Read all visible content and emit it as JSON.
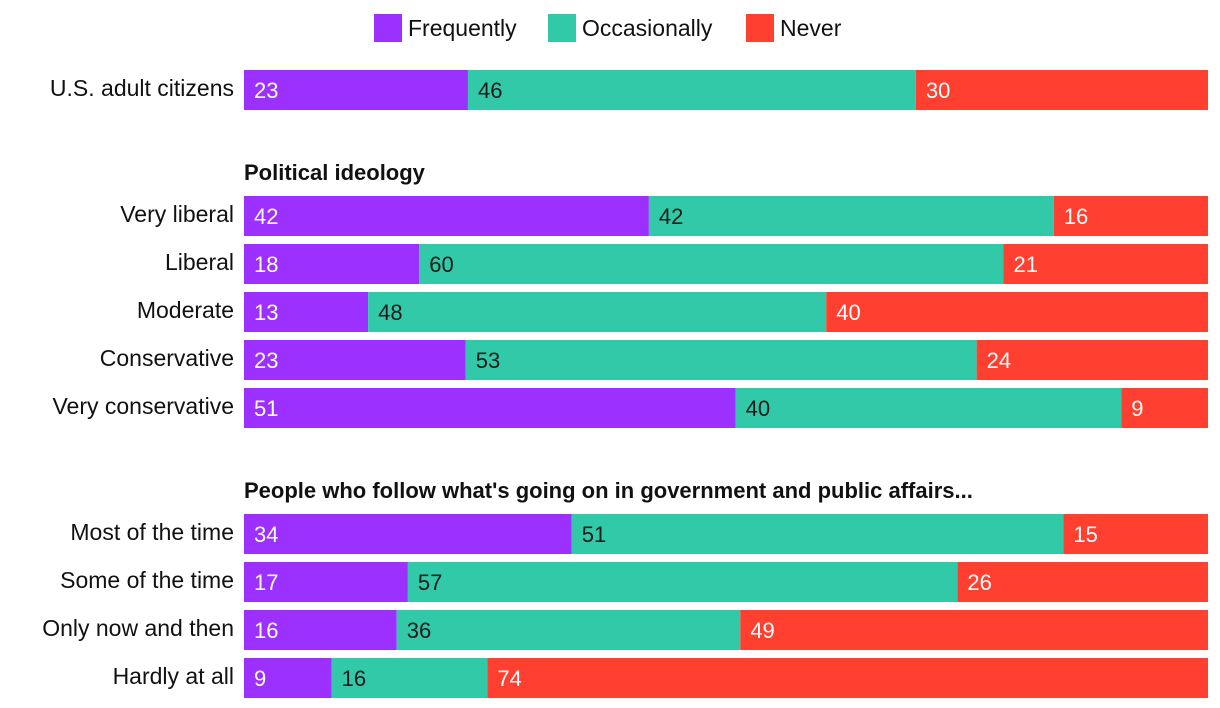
{
  "chart_data": {
    "type": "bar",
    "orientation": "horizontal",
    "stacked": true,
    "legend": [
      {
        "name": "Frequently",
        "color": "#9b30ff"
      },
      {
        "name": "Occasionally",
        "color": "#31c9a8"
      },
      {
        "name": "Never",
        "color": "#ff4030"
      }
    ],
    "groups": [
      {
        "heading": "",
        "rows": [
          {
            "label": "U.S. adult citizens",
            "values": [
              23,
              46,
              30
            ]
          }
        ]
      },
      {
        "heading": "Political ideology",
        "rows": [
          {
            "label": "Very liberal",
            "values": [
              42,
              42,
              16
            ]
          },
          {
            "label": "Liberal",
            "values": [
              18,
              60,
              21
            ]
          },
          {
            "label": "Moderate",
            "values": [
              13,
              48,
              40
            ]
          },
          {
            "label": "Conservative",
            "values": [
              23,
              53,
              24
            ]
          },
          {
            "label": "Very conservative",
            "values": [
              51,
              40,
              9
            ]
          }
        ]
      },
      {
        "heading": "People who follow what's going on in government and public affairs...",
        "rows": [
          {
            "label": "Most of the time",
            "values": [
              34,
              51,
              15
            ]
          },
          {
            "label": "Some of the time",
            "values": [
              17,
              57,
              26
            ]
          },
          {
            "label": "Only now and then",
            "values": [
              16,
              36,
              49
            ]
          },
          {
            "label": "Hardly at all",
            "values": [
              9,
              16,
              74
            ]
          }
        ]
      }
    ]
  }
}
